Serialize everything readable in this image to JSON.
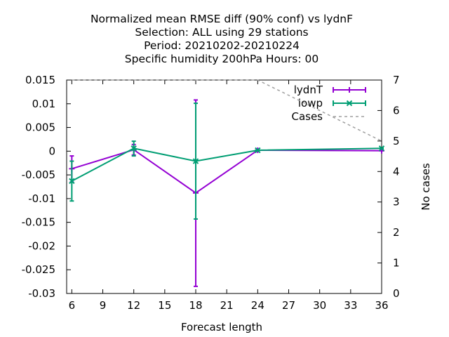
{
  "chart_data": {
    "type": "line",
    "title_lines": [
      "Normalized mean RMSE diff (90% conf) vs lydnF",
      "Selection: ALL using    29 stations",
      "Period: 20210202-20210224",
      "Specific humidity 200hPa   Hours:  00"
    ],
    "xlabel": "Forecast length",
    "ylabel_right": "No cases",
    "xlim": [
      5.5,
      36
    ],
    "ylim": [
      -0.03,
      0.015
    ],
    "y2lim": [
      0,
      7
    ],
    "x_ticks": [
      6,
      9,
      12,
      15,
      18,
      21,
      24,
      27,
      30,
      33,
      36
    ],
    "y_ticks": [
      0.015,
      0.01,
      0.005,
      0,
      -0.005,
      -0.01,
      -0.015,
      -0.02,
      -0.025,
      -0.03
    ],
    "y_tick_labels": [
      "0.015",
      "0.01",
      "0.005",
      "0",
      "-0.005",
      "-0.01",
      "-0.015",
      "-0.02",
      "-0.025",
      "-0.03"
    ],
    "y2_ticks": [
      0,
      1,
      2,
      3,
      4,
      5,
      6,
      7
    ],
    "legend_position": "top-right",
    "series": [
      {
        "name": "lydnT",
        "color": "#9400d3",
        "marker": "plus",
        "x": [
          6,
          12,
          18,
          24,
          36
        ],
        "y": [
          -0.0037,
          0.0003,
          -0.0088,
          0.0002,
          0.0001
        ],
        "err_low": [
          -0.0065,
          -0.0008,
          -0.0285,
          0.0002,
          0.0001
        ],
        "err_high": [
          -0.001,
          0.0014,
          0.0108,
          0.0002,
          0.0001
        ]
      },
      {
        "name": "iowp",
        "color": "#009e73",
        "marker": "cross",
        "x": [
          6,
          12,
          18,
          24,
          36
        ],
        "y": [
          -0.0063,
          0.0006,
          -0.0021,
          0.0002,
          0.0006
        ],
        "err_low": [
          -0.0105,
          -0.001,
          -0.0143,
          0.0002,
          0.0006
        ],
        "err_high": [
          -0.0021,
          0.0021,
          0.0101,
          0.0002,
          0.0006
        ]
      }
    ],
    "cases": {
      "name": "Cases",
      "color": "#a0a0a0",
      "x": [
        6,
        24,
        36
      ],
      "y": [
        7,
        7,
        5
      ]
    }
  }
}
